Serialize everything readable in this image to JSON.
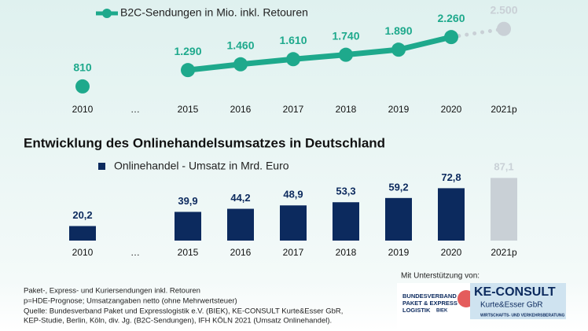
{
  "chart_data": [
    {
      "type": "line",
      "categories": [
        "2010",
        "…",
        "2015",
        "2016",
        "2017",
        "2018",
        "2019",
        "2020",
        "2021p"
      ],
      "series": [
        {
          "name": "B2C-Sendungen in Mio. inkl. Retouren",
          "color": "#1ea98c",
          "values": [
            810,
            null,
            1290,
            1460,
            1610,
            1740,
            1890,
            2260,
            2500
          ],
          "value_labels": [
            "810",
            null,
            "1.290",
            "1.460",
            "1.610",
            "1.740",
            "1.890",
            "2.260",
            "2.500"
          ],
          "point_colors": [
            "#1ea98c",
            null,
            "#1ea98c",
            "#1ea98c",
            "#1ea98c",
            "#1ea98c",
            "#1ea98c",
            "#1ea98c",
            "#c9d0d6"
          ]
        }
      ]
    },
    {
      "type": "bar",
      "title": "Entwicklung des Onlinehandelsumsatzes in Deutschland",
      "categories": [
        "2010",
        "…",
        "2015",
        "2016",
        "2017",
        "2018",
        "2019",
        "2020",
        "2021p"
      ],
      "series": [
        {
          "name": "Onlinehandel - Umsatz in Mrd. Euro",
          "color": "#0c2a5e",
          "values": [
            20.2,
            null,
            39.9,
            44.2,
            48.9,
            53.3,
            59.2,
            72.8,
            87.1
          ],
          "value_labels": [
            "20,2",
            null,
            "39,9",
            "44,2",
            "48,9",
            "53,3",
            "59,2",
            "72,8",
            "87,1"
          ],
          "point_colors": [
            "#0c2a5e",
            null,
            "#0c2a5e",
            "#0c2a5e",
            "#0c2a5e",
            "#0c2a5e",
            "#0c2a5e",
            "#0c2a5e",
            "#c9d0d6"
          ]
        }
      ]
    }
  ],
  "footnotes": [
    "Paket-, Express- und Kuriersendungen inkl. Retouren",
    "p=HDE-Prognose; Umsatzangaben netto (ohne Mehrwertsteuer)",
    "Quelle: Bundesverband Paket und Expresslogistik e.V. (BIEK), KE-CONSULT Kurte&Esser GbR,",
    "KEP-Studie, Berlin, Köln, div. Jg. (B2C-Sendungen), IFH KÖLN 2021 (Umsatz Onlinehandel)."
  ],
  "support": {
    "label": "Mit Unterstützung von:",
    "biek": [
      "BUNDESVERBAND",
      "PAKET & EXPRESS",
      "LOGISTIK",
      "BIEK"
    ],
    "ke": [
      "KE-CONSULT",
      "Kurte&Esser GbR",
      "WIRTSCHAFTS- UND VERKEHRSBERATUNG"
    ]
  }
}
